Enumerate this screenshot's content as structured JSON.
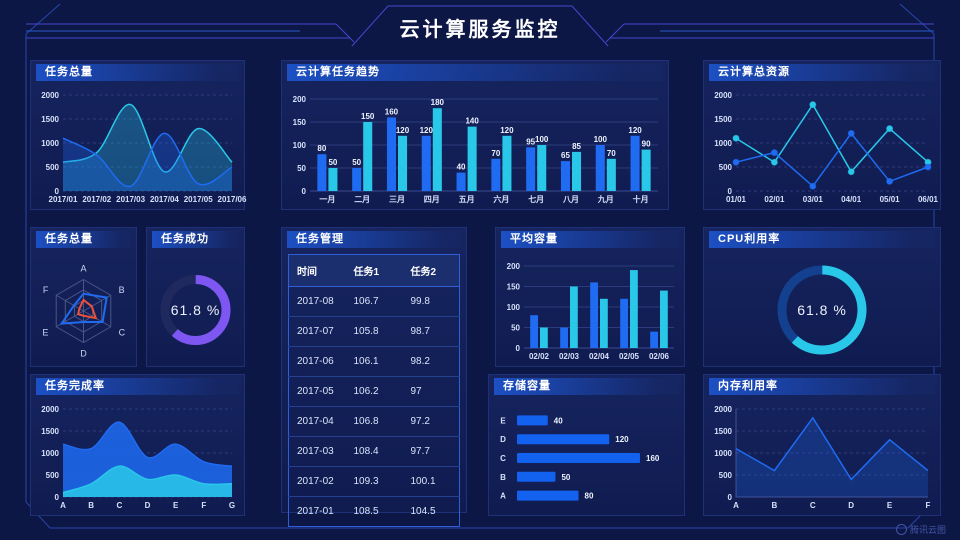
{
  "header": {
    "title": "云计算服务监控"
  },
  "watermark": {
    "text": "腾讯云图"
  },
  "colors": {
    "blue": "#1f6bf2",
    "cyan": "#29c8e9",
    "purple": "#7e57f2",
    "red": "#e8503a",
    "axis": "#d7e0fa",
    "grid": "#2c3b7c",
    "track_dark": "#20295e",
    "track_blue": "#14418f"
  },
  "chart_data": [
    {
      "id": "task_total_area",
      "type": "area",
      "title": "任务总量",
      "x": [
        "2017/01",
        "2017/02",
        "2017/03",
        "2017/04",
        "2017/05",
        "2017/06"
      ],
      "ylim": [
        0,
        2000
      ],
      "yticks": [
        0,
        500,
        1000,
        1500,
        2000
      ],
      "series": [
        {
          "color": "cyan",
          "values": [
            600,
            800,
            1800,
            400,
            1300,
            600
          ]
        },
        {
          "color": "blue",
          "values": [
            1100,
            750,
            100,
            1200,
            150,
            500
          ]
        }
      ]
    },
    {
      "id": "task_trend_bar",
      "type": "bar",
      "title": "云计算任务趋势",
      "categories": [
        "一月",
        "二月",
        "三月",
        "四月",
        "五月",
        "六月",
        "七月",
        "八月",
        "九月",
        "十月"
      ],
      "ylim": [
        0,
        200
      ],
      "yticks": [
        0,
        50,
        100,
        150,
        200
      ],
      "data_labels": true,
      "series": [
        {
          "color": "blue",
          "values": [
            80,
            50,
            160,
            120,
            40,
            70,
            95,
            65,
            100,
            120
          ]
        },
        {
          "color": "cyan",
          "values": [
            50,
            150,
            120,
            180,
            140,
            120,
            100,
            85,
            70,
            90
          ]
        }
      ]
    },
    {
      "id": "total_resources_line",
      "type": "line",
      "title": "云计算总资源",
      "x": [
        "01/01",
        "02/01",
        "03/01",
        "04/01",
        "05/01",
        "06/01"
      ],
      "ylim": [
        0,
        2000
      ],
      "yticks": [
        0,
        500,
        1000,
        1500,
        2000
      ],
      "markers": true,
      "series": [
        {
          "color": "cyan",
          "values": [
            1100,
            600,
            1800,
            400,
            1300,
            600
          ]
        },
        {
          "color": "blue",
          "values": [
            600,
            800,
            100,
            1200,
            200,
            500
          ]
        }
      ]
    },
    {
      "id": "task_total_radar",
      "type": "radar",
      "title": "任务总量",
      "axes": [
        "A",
        "B",
        "C",
        "D",
        "E",
        "F"
      ],
      "max": 100,
      "series": [
        {
          "color": "blue",
          "values": [
            55,
            85,
            70,
            35,
            80,
            35
          ]
        },
        {
          "color": "red",
          "values": [
            35,
            30,
            45,
            15,
            20,
            15
          ]
        }
      ]
    },
    {
      "id": "task_success_gauge",
      "type": "gauge",
      "title": "任务成功",
      "value": 61.8,
      "label": "61.8 %",
      "color": "purple",
      "track": "track_dark"
    },
    {
      "id": "task_table",
      "type": "table",
      "title": "任务管理",
      "columns": [
        "时间",
        "任务1",
        "任务2"
      ],
      "rows": [
        [
          "2017-08",
          "106.7",
          "99.8"
        ],
        [
          "2017-07",
          "105.8",
          "98.7"
        ],
        [
          "2017-06",
          "106.1",
          "98.2"
        ],
        [
          "2017-05",
          "106.2",
          "97"
        ],
        [
          "2017-04",
          "106.8",
          "97.2"
        ],
        [
          "2017-03",
          "108.4",
          "97.7"
        ],
        [
          "2017-02",
          "109.3",
          "100.1"
        ],
        [
          "2017-01",
          "108.5",
          "104.5"
        ]
      ]
    },
    {
      "id": "avg_capacity_bar",
      "type": "bar",
      "title": "平均容量",
      "categories": [
        "02/02",
        "02/03",
        "02/04",
        "02/05",
        "02/06"
      ],
      "ylim": [
        0,
        200
      ],
      "yticks": [
        0,
        50,
        100,
        150,
        200
      ],
      "data_labels": false,
      "series": [
        {
          "color": "blue",
          "values": [
            80,
            50,
            160,
            120,
            40
          ]
        },
        {
          "color": "cyan",
          "values": [
            50,
            150,
            120,
            190,
            140
          ]
        }
      ]
    },
    {
      "id": "cpu_gauge",
      "type": "gauge",
      "title": "CPU利用率",
      "value": 61.8,
      "label": "61.8 %",
      "color": "cyan",
      "track": "track_blue"
    },
    {
      "id": "completion_area",
      "type": "stacked-area",
      "title": "任务完成率",
      "x": [
        "A",
        "B",
        "C",
        "D",
        "E",
        "F",
        "G"
      ],
      "ylim": [
        0,
        2000
      ],
      "yticks": [
        0,
        500,
        1000,
        1500,
        2000
      ],
      "series": [
        {
          "color": "blue",
          "values": [
            1200,
            1100,
            1700,
            900,
            1200,
            800,
            700
          ]
        },
        {
          "color": "cyan",
          "values": [
            100,
            300,
            700,
            400,
            500,
            300,
            300
          ]
        }
      ]
    },
    {
      "id": "storage_hbar",
      "type": "hbar",
      "title": "存储容量",
      "categories": [
        "E",
        "D",
        "C",
        "B",
        "A"
      ],
      "values": [
        40,
        120,
        160,
        50,
        80
      ],
      "xmax": 200
    },
    {
      "id": "memory_line",
      "type": "area-line",
      "title": "内存利用率",
      "x": [
        "A",
        "B",
        "C",
        "D",
        "E",
        "F"
      ],
      "ylim": [
        0,
        2000
      ],
      "yticks": [
        0,
        500,
        1000,
        1500,
        2000
      ],
      "series": [
        {
          "color": "blue",
          "values": [
            1100,
            600,
            1800,
            400,
            1300,
            600
          ]
        }
      ]
    }
  ]
}
